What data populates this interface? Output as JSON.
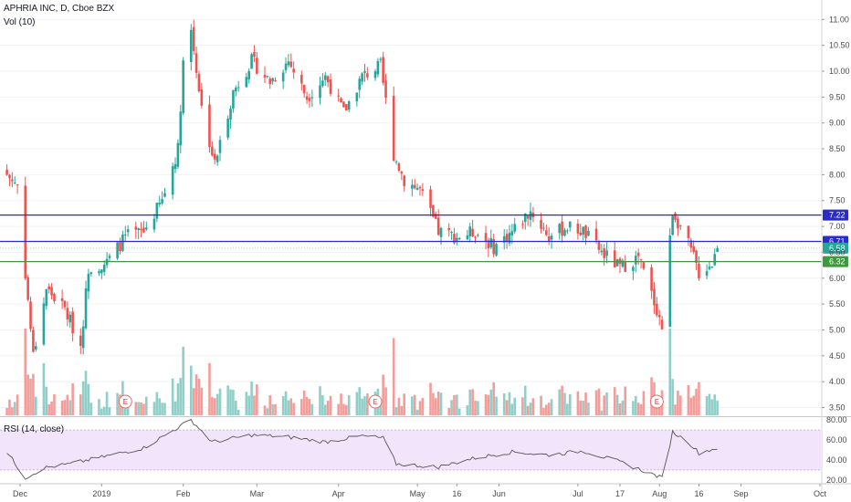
{
  "header": {
    "symbol_line": "APHRIA INC, D, Cboe BZX",
    "volume_line": "Vol (10)",
    "rsi_line": "RSI (14, close)"
  },
  "colors": {
    "up": "#26a69a",
    "down": "#ef5350",
    "vol_up": "#8fcfc7",
    "vol_down": "#f29d9a",
    "blue_line": "#2b2bc9",
    "green_line": "#3d9a3d",
    "rsi_line": "#555555",
    "rsi_band": "#f1e4fb"
  },
  "chart_data": [
    {
      "type": "candlestick",
      "title": "APHRIA INC, D, Cboe BZX",
      "ylim": [
        3.35,
        11.2
      ],
      "y_ticks": [
        "11.00",
        "10.50",
        "10.00",
        "9.50",
        "9.00",
        "8.50",
        "8.00",
        "7.50",
        "7.00",
        "6.50",
        "6.00",
        "5.50",
        "5.00",
        "4.50",
        "4.00",
        "3.50"
      ],
      "x_ticks": [
        "Dec",
        "2019",
        "Feb",
        "Mar",
        "Apr",
        "May",
        "16",
        "Jun",
        "Jul",
        "17",
        "Aug",
        "16",
        "Sep",
        "Oct"
      ],
      "horizontal_levels": [
        {
          "value": 7.22,
          "label": "7.22",
          "color": "blue"
        },
        {
          "value": 6.71,
          "label": "6.71",
          "color": "blue"
        },
        {
          "value": 6.32,
          "label": "6.32",
          "color": "green"
        }
      ],
      "last_price": {
        "value": 6.58,
        "label": "6.58"
      },
      "earnings_markers": [
        "E",
        "E",
        "E"
      ],
      "close_anchors": [
        [
          "2018-11-26",
          8.0
        ],
        [
          "2018-11-30",
          7.8
        ],
        [
          "2018-12-03",
          6.1
        ],
        [
          "2018-12-06",
          4.5
        ],
        [
          "2018-12-11",
          5.8
        ],
        [
          "2018-12-18",
          5.4
        ],
        [
          "2018-12-24",
          4.7
        ],
        [
          "2018-12-27",
          6.2
        ],
        [
          "2019-01-03",
          6.3
        ],
        [
          "2019-01-10",
          6.8
        ],
        [
          "2019-01-17",
          6.9
        ],
        [
          "2019-01-24",
          7.5
        ],
        [
          "2019-01-30",
          8.5
        ],
        [
          "2019-02-01",
          10.2
        ],
        [
          "2019-02-04",
          10.8
        ],
        [
          "2019-02-08",
          9.3
        ],
        [
          "2019-02-13",
          8.2
        ],
        [
          "2019-02-20",
          9.6
        ],
        [
          "2019-02-27",
          10.2
        ],
        [
          "2019-03-06",
          9.8
        ],
        [
          "2019-03-13",
          10.2
        ],
        [
          "2019-03-20",
          9.5
        ],
        [
          "2019-03-27",
          9.9
        ],
        [
          "2019-04-03",
          9.2
        ],
        [
          "2019-04-10",
          9.9
        ],
        [
          "2019-04-17",
          10.1
        ],
        [
          "2019-04-22",
          8.4
        ],
        [
          "2019-04-26",
          7.9
        ],
        [
          "2019-05-02",
          7.7
        ],
        [
          "2019-05-09",
          6.9
        ],
        [
          "2019-05-16",
          6.8
        ],
        [
          "2019-05-23",
          6.9
        ],
        [
          "2019-05-30",
          6.6
        ],
        [
          "2019-06-06",
          6.9
        ],
        [
          "2019-06-13",
          7.3
        ],
        [
          "2019-06-20",
          6.8
        ],
        [
          "2019-06-27",
          7.0
        ],
        [
          "2019-07-03",
          6.9
        ],
        [
          "2019-07-10",
          6.5
        ],
        [
          "2019-07-17",
          6.2
        ],
        [
          "2019-07-24",
          6.4
        ],
        [
          "2019-07-31",
          5.4
        ],
        [
          "2019-08-02",
          5.05
        ],
        [
          "2019-08-06",
          7.3
        ],
        [
          "2019-08-09",
          7.0
        ],
        [
          "2019-08-14",
          6.4
        ],
        [
          "2019-08-16",
          6.1
        ],
        [
          "2019-08-21",
          6.3
        ],
        [
          "2019-08-23",
          6.58
        ]
      ],
      "volume_range": [
        0,
        10
      ]
    },
    {
      "type": "line",
      "title": "RSI (14, close)",
      "ylim": [
        18,
        82
      ],
      "y_ticks": [
        "80.00",
        "60.00",
        "40.00",
        "20.00"
      ],
      "band": [
        30,
        70
      ],
      "anchors": [
        [
          "2018-11-26",
          48
        ],
        [
          "2018-12-03",
          22
        ],
        [
          "2018-12-10",
          32
        ],
        [
          "2018-12-20",
          36
        ],
        [
          "2019-01-03",
          44
        ],
        [
          "2019-01-17",
          52
        ],
        [
          "2019-01-31",
          74
        ],
        [
          "2019-02-04",
          80
        ],
        [
          "2019-02-12",
          58
        ],
        [
          "2019-02-27",
          65
        ],
        [
          "2019-03-13",
          63
        ],
        [
          "2019-03-27",
          58
        ],
        [
          "2019-04-10",
          64
        ],
        [
          "2019-04-18",
          62
        ],
        [
          "2019-04-23",
          36
        ],
        [
          "2019-05-09",
          33
        ],
        [
          "2019-05-23",
          42
        ],
        [
          "2019-06-06",
          48
        ],
        [
          "2019-06-20",
          45
        ],
        [
          "2019-07-03",
          49
        ],
        [
          "2019-07-17",
          38
        ],
        [
          "2019-07-31",
          24
        ],
        [
          "2019-08-02",
          22
        ],
        [
          "2019-08-06",
          68
        ],
        [
          "2019-08-12",
          58
        ],
        [
          "2019-08-16",
          47
        ],
        [
          "2019-08-23",
          52
        ]
      ]
    }
  ]
}
